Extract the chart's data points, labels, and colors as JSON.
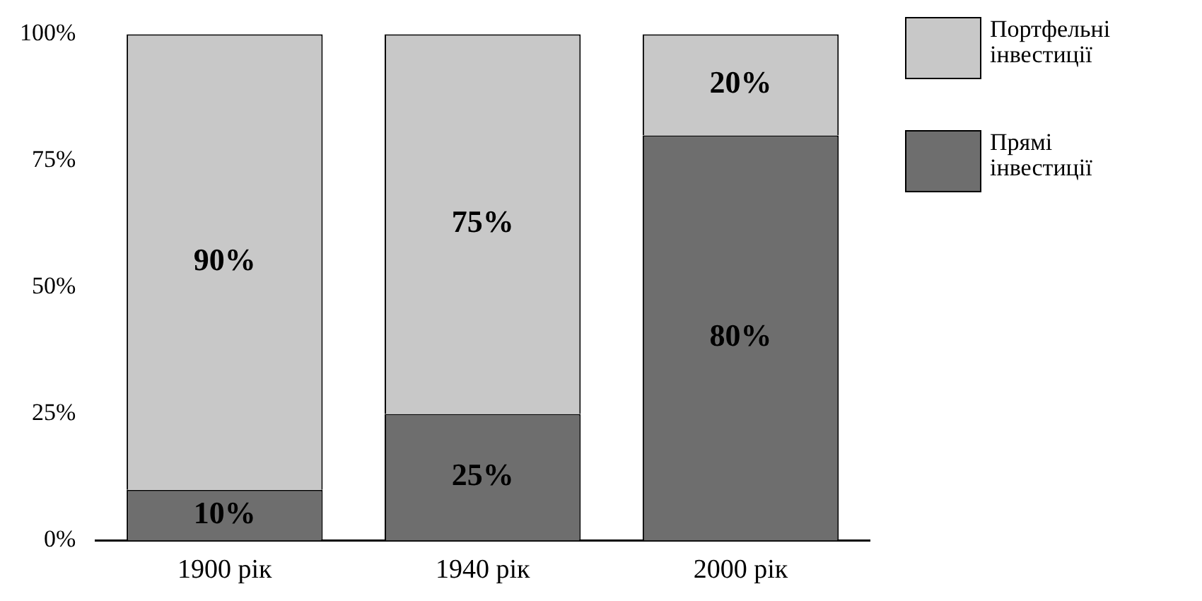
{
  "chart_data": {
    "type": "bar",
    "stacked": true,
    "categories": [
      "1900 рік",
      "1940 рік",
      "2000 рік"
    ],
    "series": [
      {
        "name": "Прямі інвестиції",
        "color": "#6e6e6e",
        "values": [
          10,
          25,
          80
        ],
        "value_labels": [
          "10%",
          "25%",
          "80%"
        ]
      },
      {
        "name": "Портфельні інвестиції",
        "color": "#c8c8c8",
        "values": [
          90,
          75,
          20
        ],
        "value_labels": [
          "90%",
          "75%",
          "20%"
        ]
      }
    ],
    "ylim": [
      0,
      100
    ],
    "yticks": [
      {
        "value": 0,
        "label": "0%"
      },
      {
        "value": 25,
        "label": "25%"
      },
      {
        "value": 50,
        "label": "50%"
      },
      {
        "value": 75,
        "label": "75%"
      },
      {
        "value": 100,
        "label": "100%"
      }
    ],
    "grid": false,
    "legend": "top right"
  }
}
